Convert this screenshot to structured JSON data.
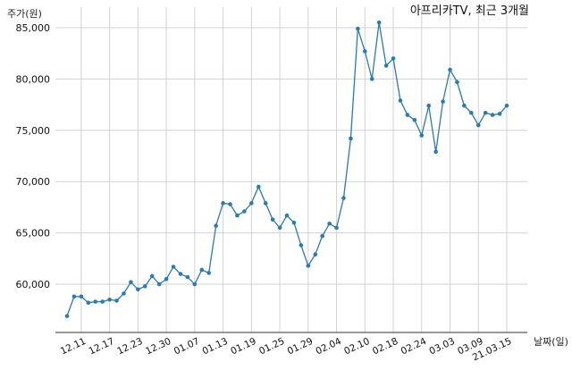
{
  "chart_data": {
    "type": "line",
    "title": "아프리카TV, 최근 3개월",
    "ylabel": "주가(원)",
    "xlabel": "날짜(일)",
    "ylim": [
      55300,
      87000
    ],
    "y_ticks": [
      "60,000",
      "65,000",
      "70,000",
      "75,000",
      "80,000",
      "85,000"
    ],
    "y_tick_values": [
      60000,
      65000,
      70000,
      75000,
      80000,
      85000
    ],
    "x_tick_labels": [
      "12.11",
      "12.17",
      "12.23",
      "12.30",
      "01.07",
      "01.13",
      "01.19",
      "01.25",
      "01.29",
      "02.04",
      "02.10",
      "02.18",
      "02.24",
      "03.03",
      "03.09",
      "21.03.15"
    ],
    "x_tick_indices": [
      2,
      6,
      10,
      14,
      18,
      22,
      26,
      30,
      34,
      38,
      42,
      46,
      50,
      54,
      58,
      62
    ],
    "grid": true,
    "line_color": "#2b7bb0",
    "series": [
      {
        "values": [
          56900,
          58800,
          58800,
          58200,
          58300,
          58300,
          58500,
          58400,
          59100,
          60200,
          59500,
          59800,
          60800,
          60000,
          60500,
          61700,
          61000,
          60700,
          60000,
          61400,
          61100,
          65700,
          67900,
          67800,
          66700,
          67100,
          67900,
          69500,
          67900,
          66300,
          65500,
          66700,
          66000,
          63800,
          61800,
          62900,
          64700,
          65900,
          65500,
          68400,
          74200,
          84900,
          82700,
          80000,
          85500,
          81300,
          82000,
          77900,
          76500,
          76000,
          74500,
          77400,
          72900,
          77800,
          80900,
          79700,
          77400,
          76700,
          75500,
          76700,
          76500,
          76600,
          77400
        ]
      }
    ]
  }
}
